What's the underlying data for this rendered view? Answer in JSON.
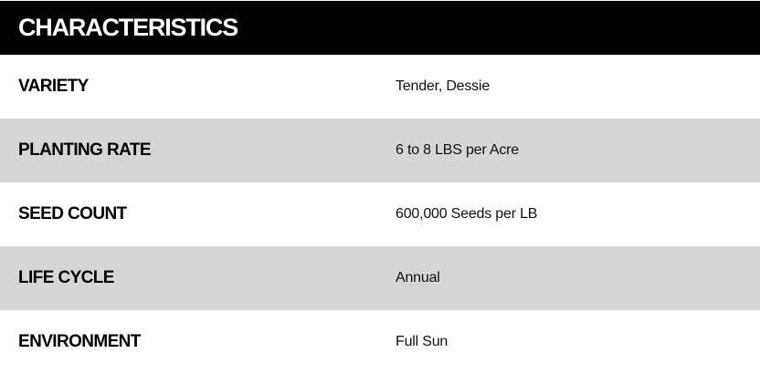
{
  "title": "CHARACTERISTICS",
  "rows": [
    {
      "label": "VARIETY",
      "value": "Tender, Dessie"
    },
    {
      "label": "PLANTING RATE",
      "value": "6 to 8 LBS per Acre"
    },
    {
      "label": "SEED COUNT",
      "value": "600,000 Seeds per LB"
    },
    {
      "label": "LIFE CYCLE",
      "value": "Annual"
    },
    {
      "label": "ENVIRONMENT",
      "value": "Full Sun"
    }
  ],
  "colors": {
    "header_bg": "#000000",
    "alt_row_bg": "#d6d6d6"
  }
}
